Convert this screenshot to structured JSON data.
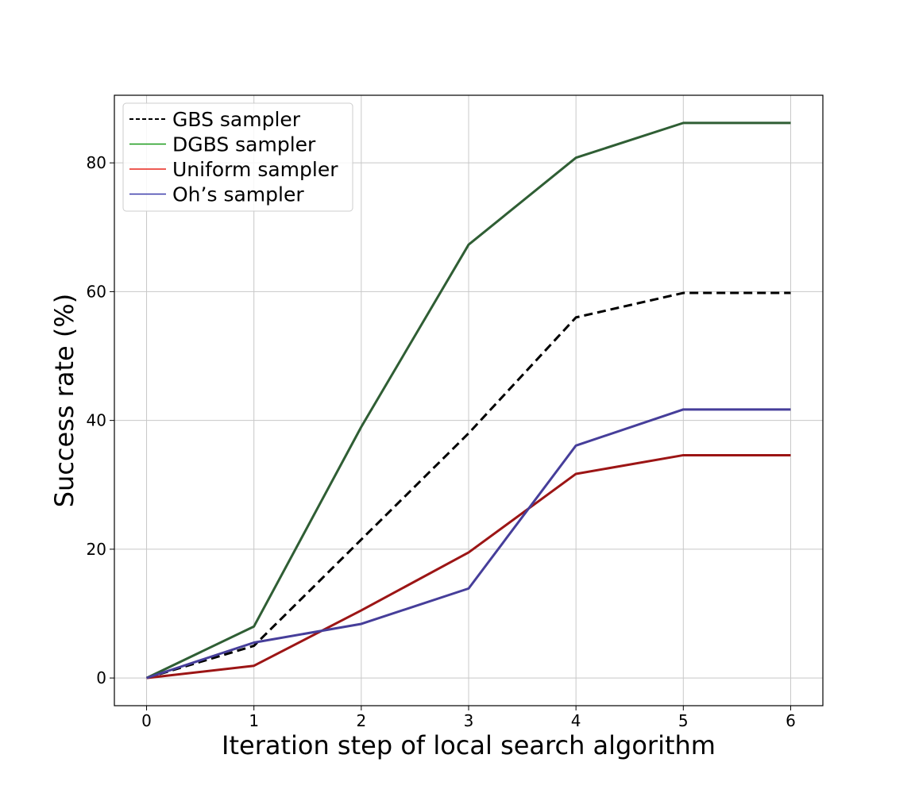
{
  "chart_data": {
    "type": "line",
    "title": "",
    "xlabel": "Iteration step of local search algorithm",
    "ylabel": "Success rate (%)",
    "x": [
      0,
      1,
      2,
      3,
      4,
      5,
      6
    ],
    "xlim": [
      -0.3,
      6.3
    ],
    "ylim": [
      -4.3,
      90.5
    ],
    "xticks": [
      0,
      1,
      2,
      3,
      4,
      5,
      6
    ],
    "yticks": [
      0,
      20,
      40,
      60,
      80
    ],
    "grid": true,
    "legend_position": "top-left",
    "series": [
      {
        "name": "GBS sampler",
        "color": "#000000",
        "dash": "dashed",
        "legend_color": "#000000",
        "values": [
          0,
          5,
          21.5,
          38,
          56,
          59.8,
          59.8
        ]
      },
      {
        "name": "DGBS sampler",
        "color": "#2f5e34",
        "dash": "solid",
        "legend_color": "#1a9a1a",
        "values": [
          0,
          8,
          39,
          67.3,
          80.8,
          86.2,
          86.2
        ]
      },
      {
        "name": "Uniform sampler",
        "color": "#9c1515",
        "dash": "solid",
        "legend_color": "#e8251b",
        "values": [
          0,
          1.9,
          10.5,
          19.5,
          31.7,
          34.6,
          34.6
        ]
      },
      {
        "name": "Oh’s sampler",
        "color": "#463e9a",
        "dash": "solid",
        "legend_color": "#3a3aaa",
        "values": [
          0,
          5.5,
          8.4,
          13.9,
          36.1,
          41.7,
          41.7
        ]
      }
    ]
  }
}
